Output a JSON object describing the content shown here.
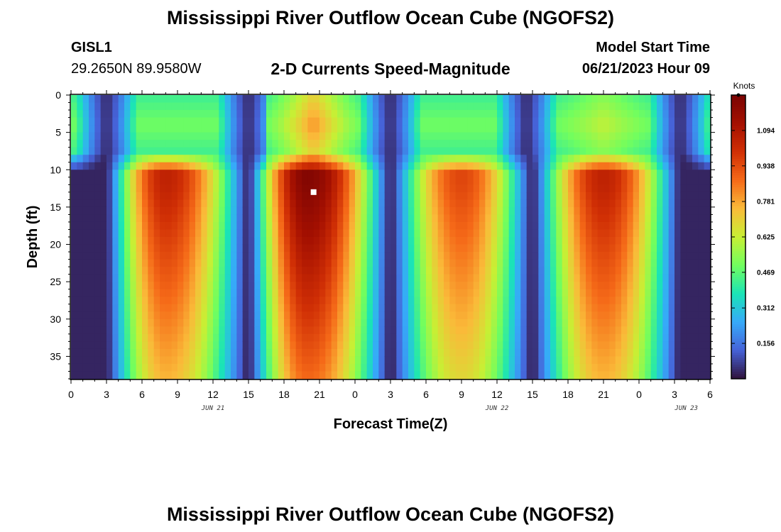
{
  "header": {
    "title": "Mississippi River Outflow Ocean Cube (NGOFS2)",
    "station_id": "GISL1",
    "station_coords": "29.2650N  89.9580W",
    "plot_title": "2-D Currents Speed-Magnitude",
    "model_start_label": "Model Start Time",
    "model_start_value": "06/21/2023 Hour 09"
  },
  "footer": {
    "title": "Mississippi River Outflow Ocean Cube (NGOFS2)"
  },
  "chart_data": {
    "type": "heatmap",
    "title": "2-D Currents Speed-Magnitude",
    "xlabel": "Forecast Time(Z)",
    "ylabel": "Depth (ft)",
    "x_range_hours": [
      0,
      54
    ],
    "x_tick_labels": [
      "0",
      "3",
      "6",
      "9",
      "12",
      "15",
      "18",
      "21",
      "0",
      "3",
      "6",
      "9",
      "12",
      "15",
      "18",
      "21",
      "0",
      "3",
      "6"
    ],
    "date_labels": [
      "JUN 21",
      "JUN 22",
      "JUN 23"
    ],
    "ylim": [
      0,
      38
    ],
    "y_ticks": [
      0,
      5,
      10,
      15,
      20,
      25,
      30,
      35
    ],
    "colorbar": {
      "units": "Knots",
      "min": 0.0,
      "max": 1.25,
      "tick_labels": [
        "1.094",
        "0.938",
        "0.781",
        "0.625",
        "0.469",
        "0.312",
        "0.156"
      ],
      "tick_values": [
        1.094,
        0.938,
        0.781,
        0.625,
        0.469,
        0.312,
        0.156
      ],
      "colormap": "turbo"
    },
    "marker": {
      "time_hour": 20.5,
      "depth_ft": 13,
      "color": "#ffffff"
    },
    "profile": {
      "surface_layer_bottom_ft": 9,
      "lower_layer_ebb_peak_knots": [
        {
          "time_hour": 8.0,
          "speed": 1.05
        },
        {
          "time_hour": 20.0,
          "speed": 1.22
        },
        {
          "time_hour": 33.0,
          "speed": 0.95
        },
        {
          "time_hour": 45.0,
          "speed": 1.05
        }
      ],
      "lower_layer_slack_hours": [
        -0.5,
        3.0,
        15.0,
        27.0,
        39.0,
        51.5
      ],
      "surface_peaks_knots": [
        {
          "time_hour": 20.5,
          "speed": 0.82
        },
        {
          "time_hour": 45.0,
          "speed": 0.62
        }
      ],
      "surface_slack_hours": [
        3.0,
        15.0,
        27.0,
        38.5,
        51.5
      ],
      "surface_mid_level_knots": 0.5
    }
  }
}
